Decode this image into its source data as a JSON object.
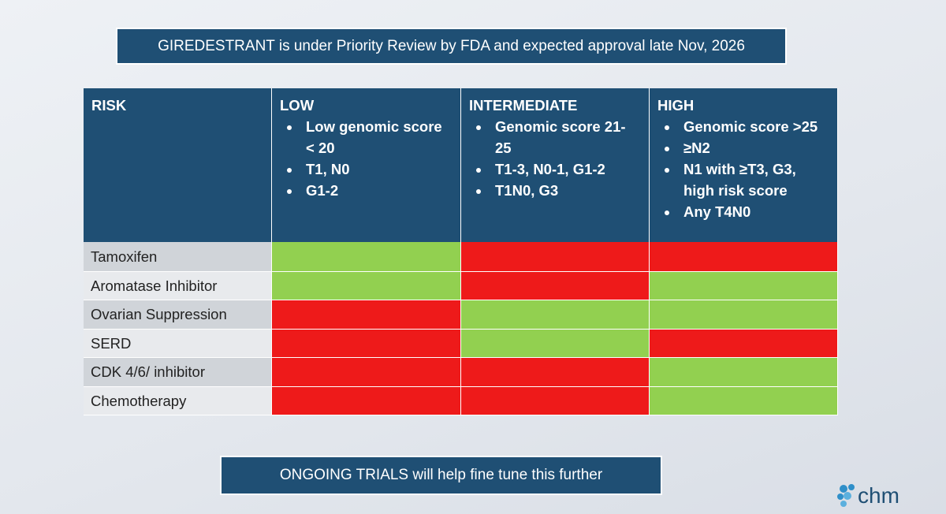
{
  "banner": "GIREDESTRANT is under Priority Review by FDA and expected approval late Nov, 2026",
  "table": {
    "header": [
      {
        "title": "RISK",
        "bullets": []
      },
      {
        "title": "LOW",
        "bullets": [
          "Low genomic score < 20",
          "T1, N0",
          "G1-2"
        ]
      },
      {
        "title": "INTERMEDIATE",
        "bullets": [
          "Genomic score 21-25",
          "T1-3, N0-1, G1-2",
          "T1N0, G3"
        ]
      },
      {
        "title": "HIGH",
        "bullets": [
          "Genomic score >25",
          "≥N2",
          "N1 with ≥T3, G3, high risk score",
          "Any T4N0"
        ]
      }
    ],
    "rows": [
      {
        "label": "Tamoxifen",
        "cells": [
          "#92d050",
          "#ee1a1a",
          "#ee1a1a"
        ]
      },
      {
        "label": "Aromatase Inhibitor",
        "cells": [
          "#92d050",
          "#ee1a1a",
          "#92d050"
        ]
      },
      {
        "label": "Ovarian Suppression",
        "cells": [
          "#ee1a1a",
          "#92d050",
          "#92d050"
        ]
      },
      {
        "label": "SERD",
        "cells": [
          "#ee1a1a",
          "#92d050",
          "#ee1a1a"
        ]
      },
      {
        "label": "CDK 4/6/ inhibitor",
        "cells": [
          "#ee1a1a",
          "#ee1a1a",
          "#92d050"
        ]
      },
      {
        "label": "Chemotherapy",
        "cells": [
          "#ee1a1a",
          "#ee1a1a",
          "#92d050"
        ]
      }
    ]
  },
  "footer": "ONGOING TRIALS will help fine tune this further",
  "logo": "chm"
}
